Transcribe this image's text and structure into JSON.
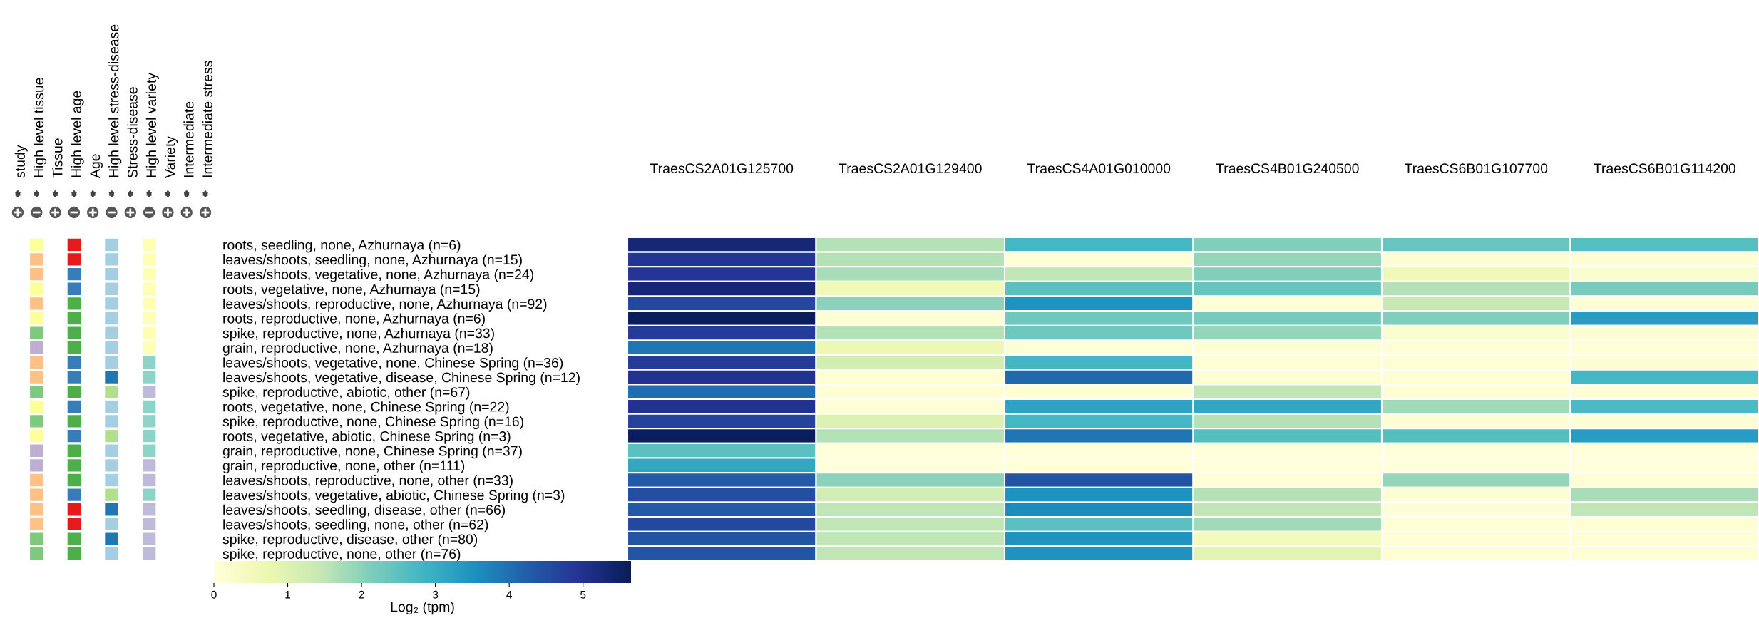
{
  "chart_data": [
    {
      "type": "other",
      "categories": [
        "study",
        "High level tissue",
        "Tissue",
        "High level age",
        "Age",
        "High level stress-disease",
        "Stress-disease",
        "High level variety",
        "Variety",
        "Intermediate",
        "Intermediate stress"
      ],
      "colors": [
        null,
        [
          "#ffff99",
          "#fdc086",
          "#fdc086",
          "#ffff99",
          "#fdc086",
          "#ffff99",
          "#7fc97f",
          "#beaed4",
          "#fdc086",
          "#fdc086",
          "#7fc97f",
          "#ffff99",
          "#7fc97f",
          "#ffff99",
          "#beaed4",
          "#beaed4",
          "#fdc086",
          "#fdc086",
          "#fdc086",
          "#fdc086",
          "#7fc97f",
          "#7fc97f"
        ],
        null,
        [
          "#e41a1c",
          "#e41a1c",
          "#377eb8",
          "#377eb8",
          "#4daf4a",
          "#4daf4a",
          "#4daf4a",
          "#4daf4a",
          "#377eb8",
          "#377eb8",
          "#4daf4a",
          "#377eb8",
          "#4daf4a",
          "#377eb8",
          "#4daf4a",
          "#4daf4a",
          "#4daf4a",
          "#377eb8",
          "#e41a1c",
          "#e41a1c",
          "#4daf4a",
          "#4daf4a"
        ],
        null,
        [
          "#a6cee3",
          "#a6cee3",
          "#a6cee3",
          "#a6cee3",
          "#a6cee3",
          "#a6cee3",
          "#a6cee3",
          "#a6cee3",
          "#a6cee3",
          "#1f78b4",
          "#b2df8a",
          "#a6cee3",
          "#a6cee3",
          "#b2df8a",
          "#a6cee3",
          "#a6cee3",
          "#a6cee3",
          "#b2df8a",
          "#1f78b4",
          "#a6cee3",
          "#1f78b4",
          "#a6cee3"
        ],
        null,
        [
          "#ffffb3",
          "#ffffb3",
          "#ffffb3",
          "#ffffb3",
          "#ffffb3",
          "#ffffb3",
          "#ffffb3",
          "#ffffb3",
          "#8dd3c7",
          "#8dd3c7",
          "#bebada",
          "#8dd3c7",
          "#8dd3c7",
          "#8dd3c7",
          "#8dd3c7",
          "#bebada",
          "#bebada",
          "#8dd3c7",
          "#bebada",
          "#bebada",
          "#bebada",
          "#bebada"
        ],
        null,
        null,
        null
      ]
    },
    {
      "type": "heatmap",
      "categories": [
        "TraesCS2A01G125700",
        "TraesCS2A01G129400",
        "TraesCS4A01G010000",
        "TraesCS4B01G240500",
        "TraesCS6B01G107700",
        "TraesCS6B01G114200"
      ],
      "y_categories": [
        "roots, seedling, none, Azhurnaya (n=6)",
        "leaves/shoots, seedling, none, Azhurnaya (n=15)",
        "leaves/shoots, vegetative, none, Azhurnaya (n=24)",
        "roots, vegetative, none, Azhurnaya (n=15)",
        "leaves/shoots, reproductive, none, Azhurnaya (n=92)",
        "roots, reproductive, none, Azhurnaya (n=6)",
        "spike, reproductive, none, Azhurnaya (n=33)",
        "grain, reproductive, none, Azhurnaya (n=18)",
        "leaves/shoots, vegetative, none, Chinese Spring (n=36)",
        "leaves/shoots, vegetative, disease, Chinese Spring (n=12)",
        "spike, reproductive, abiotic, other (n=67)",
        "roots, vegetative, none, Chinese Spring (n=22)",
        "spike, reproductive, none, Chinese Spring (n=16)",
        "roots, vegetative, abiotic, Chinese Spring (n=3)",
        "grain, reproductive, none, Chinese Spring (n=37)",
        "grain, reproductive, none, other (n=111)",
        "leaves/shoots, reproductive, none, other (n=33)",
        "leaves/shoots, vegetative, abiotic, Chinese Spring (n=3)",
        "leaves/shoots, seedling, disease, other (n=66)",
        "leaves/shoots, seedling, none, other (n=62)",
        "spike, reproductive, disease, other (n=80)",
        "spike, reproductive, none, other (n=76)"
      ],
      "cells": [
        [
          5.3,
          1.6,
          2.8,
          2.1,
          2.4,
          2.6
        ],
        [
          4.9,
          1.6,
          0.1,
          1.9,
          0.1,
          0.1
        ],
        [
          4.9,
          1.7,
          1.5,
          2.1,
          0.6,
          0.2
        ],
        [
          5.3,
          0.6,
          2.5,
          2.4,
          1.6,
          2.2
        ],
        [
          4.6,
          2.0,
          3.5,
          0.1,
          1.4,
          0.1
        ],
        [
          5.6,
          0.1,
          2.3,
          2.2,
          2.1,
          3.3
        ],
        [
          4.8,
          1.6,
          2.3,
          1.9,
          0.2,
          0.1
        ],
        [
          3.9,
          0.7,
          0.1,
          0.1,
          0.1,
          0.1
        ],
        [
          4.8,
          1.2,
          2.8,
          0.1,
          0.1,
          0.1
        ],
        [
          5.0,
          0.1,
          4.1,
          0.1,
          0.1,
          2.8
        ],
        [
          4.0,
          0.1,
          0.1,
          1.5,
          0.1,
          0.1
        ],
        [
          5.0,
          0.1,
          3.2,
          3.1,
          1.8,
          2.7
        ],
        [
          4.7,
          1.0,
          2.8,
          1.6,
          0.1,
          0.1
        ],
        [
          5.6,
          1.6,
          3.9,
          2.6,
          2.6,
          3.3
        ],
        [
          2.5,
          0.0,
          0.0,
          0.0,
          0.0,
          0.0
        ],
        [
          3.1,
          0.0,
          0.0,
          0.0,
          0.0,
          0.0
        ],
        [
          4.3,
          2.0,
          4.4,
          0.1,
          1.9,
          0.1
        ],
        [
          4.5,
          1.2,
          3.5,
          1.6,
          0.1,
          1.7
        ],
        [
          4.3,
          1.5,
          3.6,
          1.5,
          0.1,
          1.5
        ],
        [
          4.6,
          1.5,
          2.5,
          1.8,
          0.1,
          0.1
        ],
        [
          4.4,
          1.5,
          3.5,
          0.5,
          0.1,
          0.1
        ],
        [
          4.4,
          1.5,
          3.5,
          0.9,
          0.1,
          0.1
        ]
      ],
      "clim": [
        0,
        5.65
      ],
      "cticks": [
        0,
        1,
        2,
        3,
        4,
        5
      ],
      "clabel": "Log₂ (tpm)",
      "grid": false
    }
  ]
}
